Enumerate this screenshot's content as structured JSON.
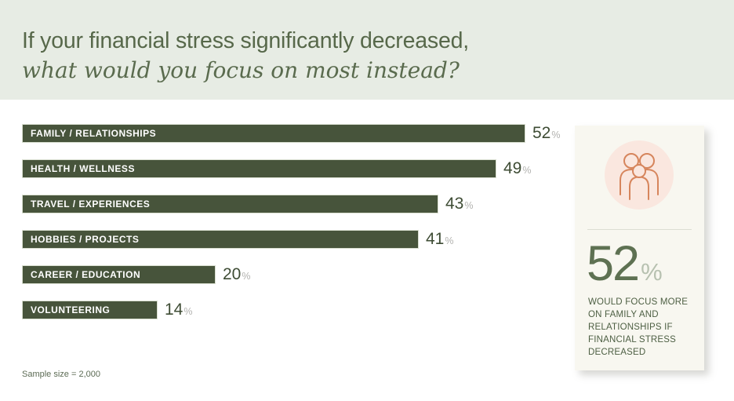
{
  "header": {
    "title_line1": "If your financial stress significantly decreased,",
    "title_line2": "what would you focus on most instead?"
  },
  "chart_data": {
    "type": "bar",
    "orientation": "horizontal",
    "categories": [
      "FAMILY / RELATIONSHIPS",
      "HEALTH / WELLNESS",
      "TRAVEL / EXPERIENCES",
      "HOBBIES / PROJECTS",
      "CAREER / EDUCATION",
      "VOLUNTEERING"
    ],
    "values": [
      52,
      49,
      43,
      41,
      20,
      14
    ],
    "unit": "%",
    "xlim": [
      0,
      52
    ],
    "value_labels_shown": true,
    "grid": false,
    "legend": false
  },
  "highlight_card": {
    "icon": "family-icon",
    "stat_value": "52",
    "stat_unit": "%",
    "caption": "WOULD FOCUS MORE ON FAMILY AND RELATIONSHIPS IF FINANCIAL STRESS DECREASED"
  },
  "footer": {
    "note": "Sample size = 2,000"
  },
  "colors": {
    "header_bg": "#e7ece4",
    "title_text": "#57684a",
    "bar_fill": "#47543b",
    "bar_label": "#ffffff",
    "value_text": "#3e4c34",
    "percent_sign": "#b2b2af",
    "card_bg": "#f8f7f0",
    "icon_circle_bg": "#fae7df",
    "icon_stroke": "#d6855c",
    "stat_text": "#5e7152",
    "stat_unit": "#b7c1b0",
    "caption_text": "#4e6044"
  }
}
